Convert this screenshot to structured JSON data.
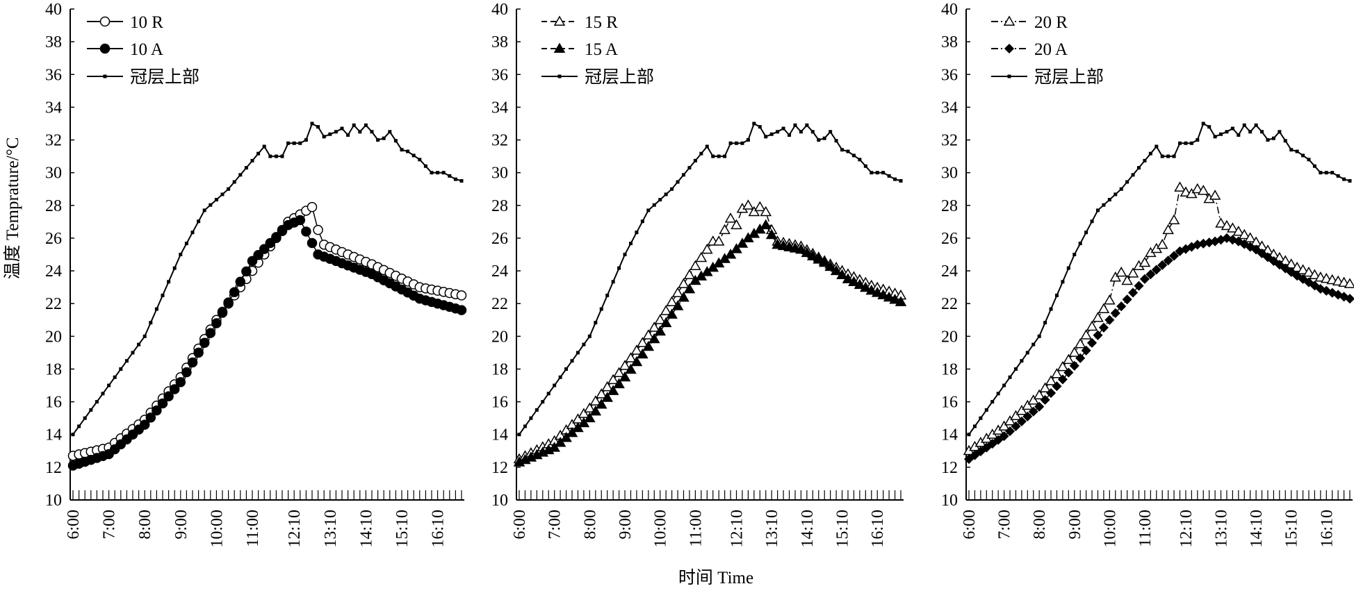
{
  "figure": {
    "ylabel": "温度 Temprature/°C",
    "xlabel": "时间 Time"
  },
  "chart_data": [
    {
      "type": "line",
      "ylim": [
        10,
        40
      ],
      "yticks": [
        10,
        12,
        14,
        16,
        18,
        20,
        22,
        24,
        26,
        28,
        30,
        32,
        34,
        36,
        38,
        40
      ],
      "x_tick_labels": [
        "6:00",
        "7:00",
        "8:00",
        "9:00",
        "10:00",
        "11:00",
        "12:10",
        "13:10",
        "14:10",
        "15:10",
        "16:10"
      ],
      "x_tick_positions": [
        0,
        6,
        12,
        18,
        24,
        30,
        37,
        43,
        49,
        55,
        61
      ],
      "x_count": 66,
      "legend_position": "top-left",
      "series": [
        {
          "name": "10 R",
          "marker": "open-circle",
          "dash": "solid",
          "points": [
            [
              0,
              12.7
            ],
            [
              6,
              13.2
            ],
            [
              12,
              14.9
            ],
            [
              18,
              17.5
            ],
            [
              24,
              21.0
            ],
            [
              30,
              24.0
            ],
            [
              36,
              27.0
            ],
            [
              40,
              27.9
            ],
            [
              41,
              26.5
            ],
            [
              42,
              25.6
            ],
            [
              50,
              24.4
            ],
            [
              58,
              23.0
            ],
            [
              65,
              22.5
            ]
          ]
        },
        {
          "name": "10 A",
          "marker": "filled-circle",
          "dash": "solid",
          "points": [
            [
              0,
              12.1
            ],
            [
              6,
              12.8
            ],
            [
              12,
              14.6
            ],
            [
              18,
              17.2
            ],
            [
              24,
              20.8
            ],
            [
              30,
              24.6
            ],
            [
              36,
              26.8
            ],
            [
              38,
              27.1
            ],
            [
              41,
              25.0
            ],
            [
              50,
              23.8
            ],
            [
              58,
              22.3
            ],
            [
              65,
              21.6
            ]
          ]
        },
        {
          "name": "冠层上部",
          "marker": "small-square",
          "dash": "solid",
          "points": [
            [
              0,
              14.0
            ],
            [
              6,
              17.0
            ],
            [
              12,
              20.0
            ],
            [
              18,
              25.0
            ],
            [
              22,
              27.7
            ],
            [
              26,
              29.0
            ],
            [
              32,
              31.6
            ],
            [
              33,
              31.0
            ],
            [
              35,
              31.0
            ],
            [
              36,
              31.8
            ],
            [
              38,
              31.8
            ],
            [
              39,
              32.0
            ],
            [
              40,
              33.0
            ],
            [
              41,
              32.8
            ],
            [
              42,
              32.2
            ],
            [
              44,
              32.5
            ],
            [
              45,
              32.7
            ],
            [
              46,
              32.3
            ],
            [
              47,
              32.9
            ],
            [
              48,
              32.5
            ],
            [
              49,
              32.9
            ],
            [
              50,
              32.5
            ],
            [
              51,
              32.0
            ],
            [
              52,
              32.1
            ],
            [
              53,
              32.5
            ],
            [
              55,
              31.4
            ],
            [
              56,
              31.3
            ],
            [
              58,
              30.8
            ],
            [
              60,
              30.0
            ],
            [
              62,
              30.0
            ],
            [
              64,
              29.6
            ],
            [
              65,
              29.5
            ]
          ]
        }
      ]
    },
    {
      "type": "line",
      "ylim": [
        10,
        40
      ],
      "yticks": [
        10,
        12,
        14,
        16,
        18,
        20,
        22,
        24,
        26,
        28,
        30,
        32,
        34,
        36,
        38,
        40
      ],
      "x_tick_labels": [
        "6:00",
        "7:00",
        "8:00",
        "9:00",
        "10:00",
        "11:00",
        "12:10",
        "13:10",
        "14:10",
        "15:10",
        "16:10"
      ],
      "x_tick_positions": [
        0,
        6,
        12,
        18,
        24,
        30,
        37,
        43,
        49,
        55,
        61
      ],
      "x_count": 66,
      "legend_position": "top-left",
      "series": [
        {
          "name": "15 R",
          "marker": "open-triangle",
          "dash": "dashed",
          "points": [
            [
              0,
              12.5
            ],
            [
              6,
              13.6
            ],
            [
              12,
              15.6
            ],
            [
              18,
              18.2
            ],
            [
              24,
              21.0
            ],
            [
              30,
              24.3
            ],
            [
              33,
              25.8
            ],
            [
              34,
              25.8
            ],
            [
              35,
              26.5
            ],
            [
              36,
              27.2
            ],
            [
              37,
              26.8
            ],
            [
              38,
              27.8
            ],
            [
              39,
              28.0
            ],
            [
              40,
              27.6
            ],
            [
              41,
              27.9
            ],
            [
              42,
              27.6
            ],
            [
              43,
              26.5
            ],
            [
              44,
              25.8
            ],
            [
              48,
              25.5
            ],
            [
              52,
              24.6
            ],
            [
              56,
              23.8
            ],
            [
              60,
              23.1
            ],
            [
              65,
              22.5
            ]
          ]
        },
        {
          "name": "15 A",
          "marker": "filled-triangle",
          "dash": "dashed",
          "points": [
            [
              0,
              12.3
            ],
            [
              6,
              13.2
            ],
            [
              12,
              15.0
            ],
            [
              18,
              17.5
            ],
            [
              24,
              20.3
            ],
            [
              30,
              23.4
            ],
            [
              33,
              24.2
            ],
            [
              36,
              25.0
            ],
            [
              39,
              26.0
            ],
            [
              42,
              26.8
            ],
            [
              43,
              26.2
            ],
            [
              44,
              25.6
            ],
            [
              48,
              25.3
            ],
            [
              52,
              24.5
            ],
            [
              56,
              23.5
            ],
            [
              60,
              22.8
            ],
            [
              65,
              22.1
            ]
          ]
        },
        {
          "name": "冠层上部",
          "marker": "small-square",
          "dash": "solid",
          "points": [
            [
              0,
              14.0
            ],
            [
              6,
              17.0
            ],
            [
              12,
              20.0
            ],
            [
              18,
              25.0
            ],
            [
              22,
              27.7
            ],
            [
              26,
              29.0
            ],
            [
              32,
              31.6
            ],
            [
              33,
              31.0
            ],
            [
              35,
              31.0
            ],
            [
              36,
              31.8
            ],
            [
              38,
              31.8
            ],
            [
              39,
              32.0
            ],
            [
              40,
              33.0
            ],
            [
              41,
              32.8
            ],
            [
              42,
              32.2
            ],
            [
              44,
              32.5
            ],
            [
              45,
              32.7
            ],
            [
              46,
              32.3
            ],
            [
              47,
              32.9
            ],
            [
              48,
              32.5
            ],
            [
              49,
              32.9
            ],
            [
              50,
              32.5
            ],
            [
              51,
              32.0
            ],
            [
              52,
              32.1
            ],
            [
              53,
              32.5
            ],
            [
              55,
              31.4
            ],
            [
              56,
              31.3
            ],
            [
              58,
              30.8
            ],
            [
              60,
              30.0
            ],
            [
              62,
              30.0
            ],
            [
              64,
              29.6
            ],
            [
              65,
              29.5
            ]
          ]
        }
      ]
    },
    {
      "type": "line",
      "ylim": [
        10,
        40
      ],
      "yticks": [
        10,
        12,
        14,
        16,
        18,
        20,
        22,
        24,
        26,
        28,
        30,
        32,
        34,
        36,
        38,
        40
      ],
      "x_tick_labels": [
        "6:00",
        "7:00",
        "8:00",
        "9:00",
        "10:00",
        "11:00",
        "12:10",
        "13:10",
        "14:10",
        "15:10",
        "16:10"
      ],
      "x_tick_positions": [
        0,
        6,
        12,
        18,
        24,
        30,
        37,
        43,
        49,
        55,
        61
      ],
      "x_count": 66,
      "legend_position": "top-left",
      "series": [
        {
          "name": "20 R",
          "marker": "open-triangle",
          "dash": "dash-dot",
          "points": [
            [
              0,
              13.0
            ],
            [
              6,
              14.5
            ],
            [
              12,
              16.4
            ],
            [
              18,
              19.0
            ],
            [
              24,
              22.2
            ],
            [
              25,
              23.6
            ],
            [
              26,
              23.9
            ],
            [
              27,
              23.4
            ],
            [
              29,
              24.3
            ],
            [
              30,
              24.5
            ],
            [
              31,
              25.1
            ],
            [
              33,
              25.6
            ],
            [
              34,
              26.5
            ],
            [
              35,
              27.1
            ],
            [
              36,
              29.1
            ],
            [
              37,
              28.8
            ],
            [
              38,
              28.7
            ],
            [
              39,
              29.0
            ],
            [
              40,
              28.9
            ],
            [
              41,
              28.4
            ],
            [
              42,
              28.6
            ],
            [
              43,
              26.9
            ],
            [
              45,
              26.6
            ],
            [
              48,
              26.0
            ],
            [
              52,
              25.0
            ],
            [
              56,
              24.2
            ],
            [
              60,
              23.6
            ],
            [
              65,
              23.2
            ]
          ]
        },
        {
          "name": "20 A",
          "marker": "filled-diamond",
          "dash": "dash-dot",
          "points": [
            [
              0,
              12.5
            ],
            [
              6,
              13.9
            ],
            [
              12,
              15.7
            ],
            [
              18,
              18.2
            ],
            [
              24,
              21.0
            ],
            [
              30,
              23.5
            ],
            [
              36,
              25.2
            ],
            [
              39,
              25.6
            ],
            [
              42,
              25.8
            ],
            [
              44,
              26.0
            ],
            [
              46,
              25.8
            ],
            [
              49,
              25.3
            ],
            [
              52,
              24.6
            ],
            [
              56,
              23.7
            ],
            [
              60,
              22.9
            ],
            [
              65,
              22.3
            ]
          ]
        },
        {
          "name": "冠层上部",
          "marker": "small-square",
          "dash": "solid",
          "points": [
            [
              0,
              14.0
            ],
            [
              6,
              17.0
            ],
            [
              12,
              20.0
            ],
            [
              18,
              25.0
            ],
            [
              22,
              27.7
            ],
            [
              26,
              29.0
            ],
            [
              32,
              31.6
            ],
            [
              33,
              31.0
            ],
            [
              35,
              31.0
            ],
            [
              36,
              31.8
            ],
            [
              38,
              31.8
            ],
            [
              39,
              32.0
            ],
            [
              40,
              33.0
            ],
            [
              41,
              32.8
            ],
            [
              42,
              32.2
            ],
            [
              44,
              32.5
            ],
            [
              45,
              32.7
            ],
            [
              46,
              32.3
            ],
            [
              47,
              32.9
            ],
            [
              48,
              32.5
            ],
            [
              49,
              32.9
            ],
            [
              50,
              32.5
            ],
            [
              51,
              32.0
            ],
            [
              52,
              32.1
            ],
            [
              53,
              32.5
            ],
            [
              55,
              31.4
            ],
            [
              56,
              31.3
            ],
            [
              58,
              30.8
            ],
            [
              60,
              30.0
            ],
            [
              62,
              30.0
            ],
            [
              64,
              29.6
            ],
            [
              65,
              29.5
            ]
          ]
        }
      ]
    }
  ]
}
